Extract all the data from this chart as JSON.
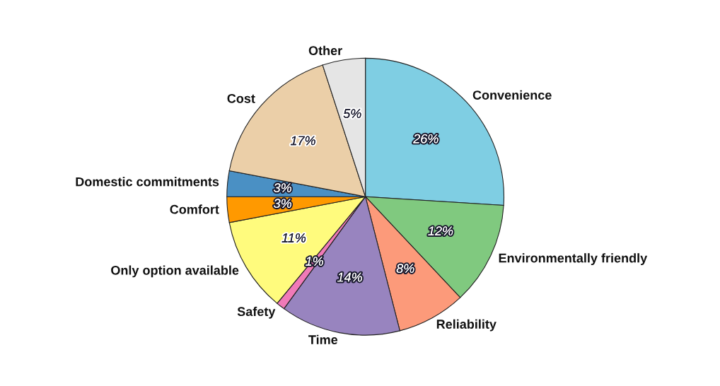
{
  "chart_data": {
    "type": "pie",
    "categories": [
      "Convenience",
      "Environmentally friendly",
      "Reliability",
      "Time",
      "Safety",
      "Only option available",
      "Comfort",
      "Domestic commitments",
      "Cost",
      "Other"
    ],
    "values": [
      26,
      12,
      8,
      14,
      1,
      11,
      3,
      3,
      17,
      5
    ],
    "colors": [
      "#7fcee3",
      "#80c97f",
      "#fc9a7a",
      "#9884bf",
      "#f07ab8",
      "#fffb7d",
      "#ff9900",
      "#4a90c4",
      "#ebcfa8",
      "#e5e5e5"
    ],
    "value_labels": [
      "26%",
      "12%",
      "8%",
      "14%",
      "1%",
      "11%",
      "3%",
      "3%",
      "17%",
      "5%"
    ]
  }
}
